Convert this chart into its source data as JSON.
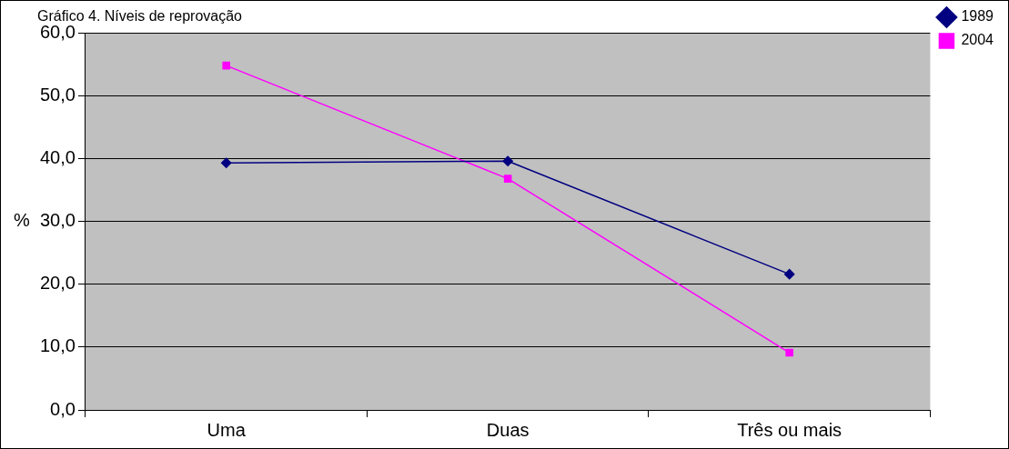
{
  "chart_data": {
    "type": "line",
    "title": "Gráfico 4. Níveis de reprovação",
    "ylabel": "%",
    "categories": [
      "Uma",
      "Duas",
      "Três ou mais"
    ],
    "series": [
      {
        "name": "1989",
        "color": "#000080",
        "marker": "diamond",
        "values": [
          39.3,
          39.6,
          21.6
        ]
      },
      {
        "name": "2004",
        "color": "#ff00ff",
        "marker": "square",
        "values": [
          54.8,
          36.8,
          9.1
        ]
      }
    ],
    "ylim": [
      0,
      60
    ],
    "yticks": [
      {
        "value": 0,
        "label": "0,0"
      },
      {
        "value": 10,
        "label": "10,0"
      },
      {
        "value": 20,
        "label": "20,0"
      },
      {
        "value": 30,
        "label": "30,0"
      },
      {
        "value": 40,
        "label": "40,0"
      },
      {
        "value": 50,
        "label": "50,0"
      },
      {
        "value": 60,
        "label": "60,0"
      }
    ],
    "grid": "y",
    "legend": "top right",
    "line_style": "solid"
  }
}
